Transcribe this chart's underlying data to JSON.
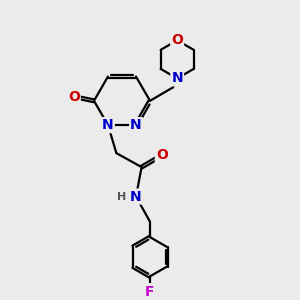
{
  "bg_color": "#ebebeb",
  "atom_colors": {
    "C": "#000000",
    "N": "#0000cc",
    "O": "#cc0000",
    "F": "#cc00cc",
    "H": "#555555"
  },
  "bond_color": "#000000",
  "bond_width": 1.6,
  "font_size_atom": 10,
  "font_size_small": 8,
  "figsize": [
    3.0,
    3.0
  ],
  "dpi": 100
}
